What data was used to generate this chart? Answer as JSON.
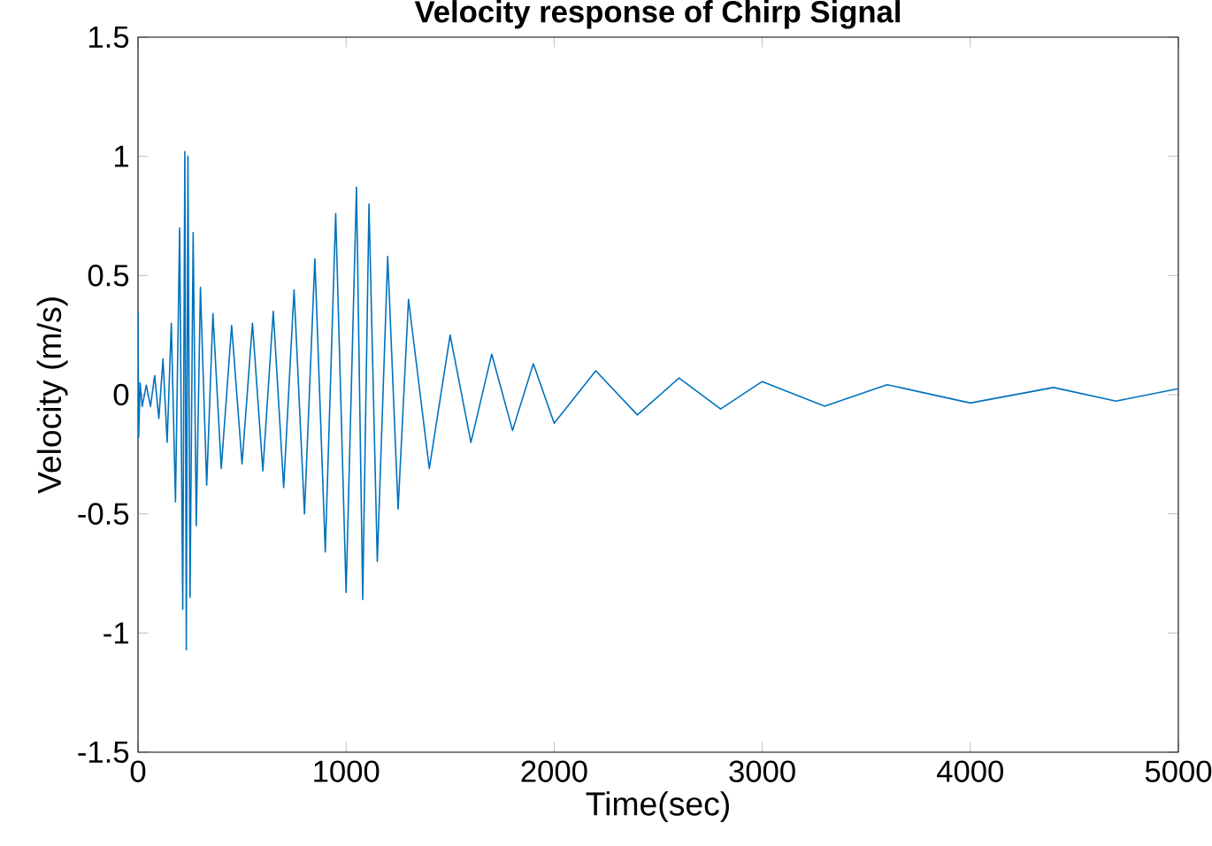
{
  "chart_data": {
    "type": "line",
    "title": "Velocity response of Chirp Signal",
    "xlabel": "Time(sec)",
    "ylabel": "Velocity (m/s)",
    "xlim": [
      0,
      5000
    ],
    "ylim": [
      -1.5,
      1.5
    ],
    "xticks": [
      0,
      1000,
      2000,
      3000,
      4000,
      5000
    ],
    "yticks": [
      -1.5,
      -1,
      -0.5,
      0,
      0.5,
      1,
      1.5
    ],
    "grid": false,
    "marker": "none",
    "line_style": "solid",
    "series": [
      {
        "color": "#0072bd",
        "x": [
          0,
          3,
          10,
          20,
          40,
          60,
          80,
          100,
          120,
          140,
          160,
          180,
          200,
          215,
          225,
          232,
          240,
          250,
          265,
          280,
          300,
          330,
          360,
          400,
          450,
          500,
          550,
          600,
          650,
          700,
          750,
          800,
          850,
          900,
          950,
          1000,
          1050,
          1080,
          1110,
          1150,
          1200,
          1250,
          1300,
          1400,
          1500,
          1600,
          1700,
          1800,
          1900,
          2000,
          2200,
          2400,
          2600,
          2800,
          3000,
          3300,
          3600,
          4000,
          4400,
          4700,
          5000
        ],
        "values": [
          0.35,
          -0.18,
          0.05,
          -0.05,
          0.04,
          -0.05,
          0.08,
          -0.1,
          0.15,
          -0.2,
          0.3,
          -0.45,
          0.7,
          -0.9,
          1.02,
          -1.07,
          1.0,
          -0.85,
          0.68,
          -0.55,
          0.45,
          -0.38,
          0.34,
          -0.31,
          0.29,
          -0.29,
          0.3,
          -0.32,
          0.35,
          -0.39,
          0.44,
          -0.5,
          0.57,
          -0.66,
          0.76,
          -0.83,
          0.87,
          -0.86,
          0.8,
          -0.7,
          0.58,
          -0.48,
          0.4,
          -0.31,
          0.25,
          -0.2,
          0.17,
          -0.15,
          0.13,
          -0.12,
          0.1,
          -0.085,
          0.07,
          -0.06,
          0.055,
          -0.048,
          0.042,
          -0.035,
          0.03,
          -0.027,
          0.025
        ]
      }
    ]
  }
}
